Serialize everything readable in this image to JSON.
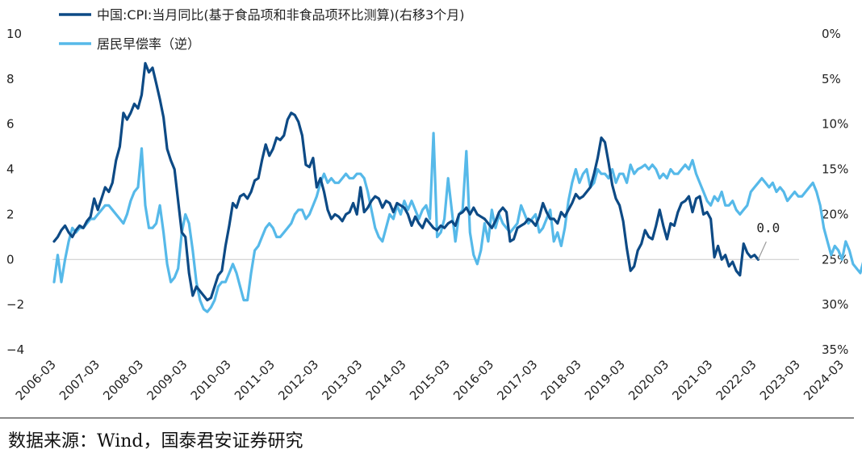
{
  "colors": {
    "series_cpi": "#0d4a85",
    "series_deposit": "#56b9e9",
    "zero_line": "#c8c8c8",
    "text": "#222222"
  },
  "source": "数据来源：Wind，国泰君安证券研究",
  "chart_data": {
    "type": "line",
    "title": "",
    "xlabel": "",
    "ylabel_left": "",
    "ylabel_right": "",
    "legend_position": "top-left",
    "grid": false,
    "x_tick_labels": [
      "2006-03",
      "2007-03",
      "2008-03",
      "2009-03",
      "2010-03",
      "2011-03",
      "2012-03",
      "2013-03",
      "2014-03",
      "2015-03",
      "2016-03",
      "2017-03",
      "2018-03",
      "2019-03",
      "2020-03",
      "2021-03",
      "2022-03",
      "2023-03",
      "2024-03"
    ],
    "y_left": {
      "range": [
        -4,
        10
      ],
      "ticks": [
        "10",
        "8",
        "6",
        "4",
        "2",
        "0",
        "−2",
        "−4"
      ],
      "tick_values": [
        10,
        8,
        6,
        4,
        2,
        0,
        -2,
        -4
      ]
    },
    "y_right": {
      "range": [
        "0%",
        "35%"
      ],
      "inverted": true,
      "ticks": [
        "0%",
        "5%",
        "10%",
        "15%",
        "20%",
        "25%",
        "30%",
        "35%"
      ],
      "tick_values": [
        0,
        5,
        10,
        15,
        20,
        25,
        30,
        35
      ]
    },
    "annotation": {
      "text": "0.0",
      "series": "cpi",
      "x": "2024-08"
    },
    "series": [
      {
        "name": "中国:CPI:当月同比(基于食品项和非食品项环比测算)(右移3个月)",
        "axis": "left",
        "x_start": "2006-03",
        "frequency": "monthly",
        "values": [
          0.8,
          1.0,
          1.3,
          1.5,
          1.2,
          1.0,
          1.3,
          1.5,
          1.4,
          1.7,
          1.9,
          2.7,
          2.2,
          2.7,
          3.2,
          3.0,
          3.4,
          4.4,
          5.0,
          6.5,
          6.2,
          6.5,
          6.9,
          6.7,
          7.3,
          8.7,
          8.3,
          8.5,
          7.8,
          7.1,
          6.3,
          4.9,
          4.4,
          4.0,
          2.6,
          1.2,
          1.0,
          -0.6,
          -1.6,
          -1.2,
          -1.4,
          -1.6,
          -1.8,
          -1.7,
          -1.2,
          -0.7,
          -0.5,
          0.6,
          1.5,
          2.5,
          2.3,
          2.8,
          2.9,
          2.7,
          3.0,
          3.5,
          3.6,
          4.4,
          5.1,
          4.6,
          4.9,
          5.4,
          5.3,
          5.5,
          6.2,
          6.5,
          6.4,
          6.1,
          5.5,
          4.2,
          4.1,
          4.5,
          3.2,
          3.6,
          3.0,
          2.2,
          1.8,
          2.0,
          1.9,
          1.7,
          2.0,
          2.1,
          2.5,
          2.0,
          3.2,
          2.1,
          2.3,
          2.6,
          2.8,
          2.7,
          2.3,
          2.6,
          2.5,
          2.1,
          2.5,
          2.4,
          2.3,
          2.0,
          1.5,
          1.9,
          1.6,
          1.4,
          1.8,
          1.6,
          1.4,
          1.3,
          1.5,
          1.4,
          1.6,
          1.7,
          1.5,
          2.0,
          2.1,
          2.3,
          2.0,
          2.3,
          2.0,
          1.9,
          1.8,
          1.6,
          1.4,
          1.7,
          2.1,
          2.3,
          2.1,
          0.8,
          0.9,
          1.4,
          1.5,
          1.6,
          1.8,
          1.7,
          1.5,
          1.9,
          2.5,
          2.1,
          1.8,
          1.8,
          1.6,
          2.1,
          1.9,
          2.2,
          2.5,
          2.9,
          2.7,
          2.8,
          3.0,
          3.2,
          3.8,
          4.5,
          5.4,
          5.2,
          4.3,
          3.3,
          2.7,
          2.4,
          1.7,
          0.5,
          -0.5,
          -0.3,
          0.4,
          0.7,
          1.3,
          1.0,
          0.9,
          1.5,
          2.2,
          1.5,
          0.9,
          1.6,
          1.5,
          2.1,
          2.5,
          2.6,
          2.8,
          2.1,
          2.7,
          2.8,
          2.0,
          2.1,
          1.8,
          0.1,
          0.6,
          0.0,
          0.2,
          -0.3,
          -0.1,
          -0.5,
          -0.7,
          0.7,
          0.3,
          0.1,
          0.2,
          0.0
        ],
        "color_key": "series_cpi"
      },
      {
        "name": "居民早偿率（逆）",
        "axis": "right",
        "unit": "%",
        "x_start": "2006-03",
        "frequency": "monthly",
        "values": [
          27.5,
          24.5,
          27.5,
          25.0,
          23.0,
          21.5,
          22.0,
          21.5,
          21.5,
          21.0,
          20.5,
          20.5,
          20.0,
          19.5,
          19.0,
          19.0,
          19.5,
          20.0,
          20.5,
          21.0,
          20.0,
          18.5,
          17.5,
          17.0,
          12.7,
          19.0,
          21.5,
          21.5,
          21.0,
          19.0,
          22.0,
          25.5,
          27.5,
          27.0,
          26.0,
          22.0,
          20.0,
          21.0,
          24.0,
          27.5,
          29.5,
          30.5,
          30.8,
          30.3,
          29.5,
          28.0,
          27.5,
          27.5,
          26.5,
          25.5,
          26.5,
          28.0,
          29.5,
          29.5,
          26.5,
          24.0,
          23.5,
          22.5,
          21.5,
          21.0,
          21.5,
          22.5,
          22.5,
          22.0,
          21.5,
          21.0,
          20.0,
          19.5,
          19.5,
          20.5,
          20.0,
          19.0,
          18.0,
          16.5,
          15.5,
          16.5,
          16.0,
          16.5,
          16.5,
          16.0,
          15.5,
          16.0,
          16.0,
          15.5,
          15.5,
          16.0,
          17.5,
          19.5,
          21.5,
          22.5,
          23.0,
          21.5,
          20.0,
          20.5,
          19.0,
          20.0,
          18.5,
          19.5,
          18.5,
          19.5,
          20.5,
          19.5,
          19.0,
          20.5,
          11.0,
          22.5,
          22.0,
          20.5,
          16.0,
          19.5,
          23.0,
          20.0,
          19.5,
          13.0,
          22.0,
          24.5,
          25.5,
          24.0,
          21.0,
          23.0,
          19.5,
          21.5,
          20.0,
          21.0,
          21.5,
          22.0,
          21.5,
          21.0,
          19.0,
          20.0,
          21.0,
          20.5,
          20.0,
          22.0,
          21.5,
          20.5,
          19.5,
          23.0,
          22.0,
          23.5,
          21.5,
          18.5,
          16.5,
          15.0,
          16.5,
          15.5,
          15.0,
          17.0,
          16.5,
          15.0,
          15.5,
          15.5,
          16.0,
          15.0,
          16.5,
          15.5,
          15.5,
          16.5,
          14.5,
          15.5,
          15.0,
          14.8,
          14.5,
          15.0,
          14.5,
          15.0,
          16.0,
          15.5,
          16.0,
          15.0,
          15.5,
          15.5,
          15.0,
          14.5,
          15.0,
          14.0,
          15.5,
          16.5,
          17.5,
          18.5,
          19.0,
          18.0,
          18.5,
          17.5,
          19.0,
          19.0,
          18.5,
          19.5,
          20.0,
          19.5,
          19.0,
          17.5,
          17.0,
          16.5,
          16.0,
          16.5,
          17.0,
          16.5,
          17.5,
          17.0,
          17.5,
          18.5,
          18.0,
          17.5,
          18.0,
          18.0,
          17.5,
          17.0,
          16.5,
          17.5,
          19.0,
          21.5,
          23.0,
          24.5,
          23.5,
          24.0,
          25.0,
          23.0,
          24.0,
          25.5,
          26.0,
          26.5,
          25.0,
          24.5,
          29.5,
          29.0,
          28.5
        ]
      }
    ]
  }
}
